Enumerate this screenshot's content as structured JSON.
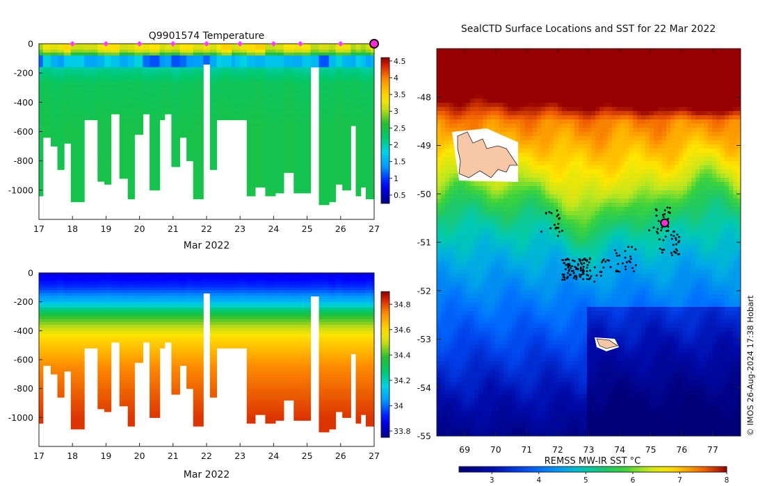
{
  "chart_data": [
    {
      "type": "heatmap",
      "panel": "temperature-section",
      "title": "Q9901574  Temperature",
      "xlabel": "Mar 2022",
      "ylabel": "",
      "xlim": [
        17,
        27
      ],
      "ylim": [
        -1200,
        0
      ],
      "xticks": [
        17,
        18,
        19,
        20,
        21,
        22,
        23,
        24,
        25,
        26,
        27
      ],
      "yticks": [
        0,
        -200,
        -400,
        -600,
        -800,
        -1000
      ],
      "colorbar": {
        "range": [
          0.25,
          4.6
        ],
        "ticks": [
          0.5,
          1,
          1.5,
          2,
          2.5,
          3,
          3.5,
          4,
          4.5
        ]
      },
      "surface_markers_x": [
        18,
        19,
        20,
        21,
        22,
        23,
        24,
        24.8,
        26
      ],
      "current_marker_x": 27,
      "profile_times": [
        17.0,
        17.12,
        17.35,
        17.55,
        17.75,
        17.95,
        18.35,
        18.75,
        18.95,
        19.15,
        19.4,
        19.65,
        19.85,
        20.1,
        20.3,
        20.6,
        20.75,
        20.95,
        21.2,
        21.4,
        21.6,
        21.9,
        22.1,
        22.3,
        22.45,
        22.75,
        22.85,
        23.0,
        23.2,
        23.45,
        23.75,
        24.05,
        24.3,
        24.6,
        24.85,
        25.1,
        25.35,
        25.65,
        25.85,
        26.05,
        26.3,
        26.45,
        26.6,
        26.75,
        26.9
      ],
      "profile_depths": [
        1030,
        640,
        700,
        850,
        680,
        1070,
        520,
        940,
        950,
        480,
        910,
        1050,
        610,
        480,
        1000,
        520,
        480,
        830,
        640,
        800,
        1050,
        140,
        860,
        510,
        510,
        510,
        510,
        510,
        1030,
        970,
        1030,
        1020,
        880,
        1010,
        1020,
        160,
        1100,
        1080,
        950,
        1000,
        560,
        1040,
        970,
        1060,
        1060
      ],
      "profile_gap_end_x": 22.1
    },
    {
      "type": "heatmap",
      "panel": "salinity-section",
      "title": "",
      "xlabel": "Mar 2022",
      "ylabel": "",
      "xlim": [
        17,
        27
      ],
      "ylim": [
        -1200,
        0
      ],
      "xticks": [
        17,
        18,
        19,
        20,
        21,
        22,
        23,
        24,
        25,
        26,
        27
      ],
      "yticks": [
        0,
        -200,
        -400,
        -600,
        -800,
        -1000
      ],
      "colorbar": {
        "range": [
          33.75,
          34.9
        ],
        "ticks": [
          33.8,
          34,
          34.2,
          34.4,
          34.6,
          34.8
        ]
      }
    },
    {
      "type": "heatmap",
      "panel": "sst-map",
      "title": "SealCTD Surface Locations and SST for 22 Mar 2022",
      "xlabel": "",
      "ylabel": "",
      "xlim": [
        68.1,
        77.9
      ],
      "ylim": [
        -55,
        -47
      ],
      "xticks": [
        69,
        70,
        71,
        72,
        73,
        74,
        75,
        76,
        77
      ],
      "yticks": [
        -48,
        -49,
        -50,
        -51,
        -52,
        -53,
        -54,
        -55
      ],
      "colorbar": {
        "label": "REMSS MW-IR SST °C",
        "range": [
          2.3,
          8
        ],
        "ticks": [
          3,
          4,
          5,
          6,
          7,
          8
        ]
      },
      "current_position": {
        "lon": 75.45,
        "lat": -50.6
      },
      "track_clusters": [
        {
          "lon": 72.6,
          "lat": -51.55,
          "count": 90
        },
        {
          "lon": 75.3,
          "lat": -50.55,
          "count": 25
        },
        {
          "lon": 75.6,
          "lat": -51.0,
          "count": 30
        },
        {
          "lon": 74.2,
          "lat": -51.35,
          "count": 25
        },
        {
          "lon": 71.8,
          "lat": -50.6,
          "count": 20
        },
        {
          "lon": 73.4,
          "lat": -51.55,
          "count": 15
        }
      ],
      "credit": "© IMOS 26-Aug-2024 17:38 Hobart"
    }
  ]
}
